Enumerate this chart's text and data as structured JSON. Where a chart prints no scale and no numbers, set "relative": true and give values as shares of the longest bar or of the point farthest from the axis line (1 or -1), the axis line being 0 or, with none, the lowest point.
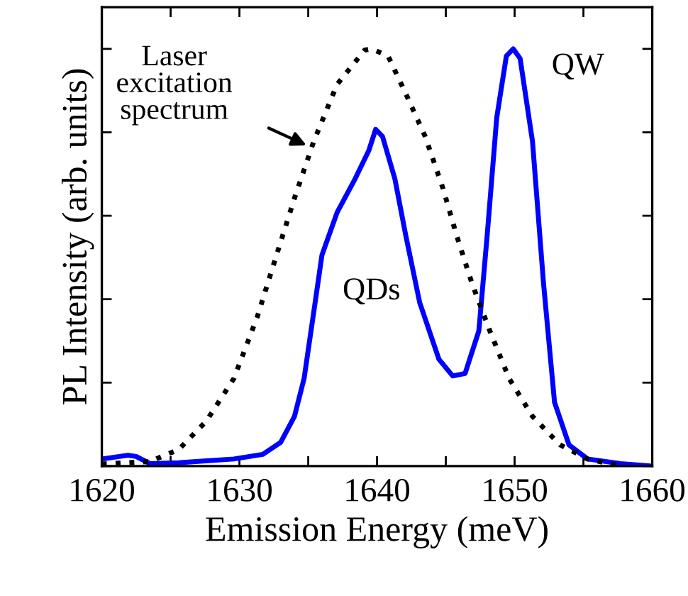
{
  "chart_data": {
    "type": "line",
    "relative": true,
    "xlabel": "Emission Energy (meV)",
    "ylabel": "PL Intensity (arb. units)",
    "xlim": [
      1620,
      1660
    ],
    "xticks": [
      1620,
      {
        "value": 1625,
        "label": null
      },
      1630,
      {
        "value": 1635,
        "label": null
      },
      1640,
      {
        "value": 1645,
        "label": null
      },
      1650,
      {
        "value": 1655,
        "label": null
      },
      1660
    ],
    "tick_labels": "x",
    "grid": false,
    "legend": false,
    "series": [
      {
        "color": "#0000ff",
        "line_style": "solid",
        "x": [
          1620,
          1621.9,
          1622.5,
          1623.5,
          1625.6,
          1629.6,
          1631.7,
          1633.0,
          1634.0,
          1634.7,
          1635.4,
          1636.0,
          1637.1,
          1638.4,
          1639.4,
          1639.9,
          1640.4,
          1641.3,
          1642.1,
          1643.1,
          1644.5,
          1645.5,
          1646.4,
          1647.4,
          1648.0,
          1648.7,
          1649.4,
          1649.9,
          1650.4,
          1651.3,
          1652.1,
          1652.9,
          1653.95,
          1655.3,
          1657.7,
          1660
        ],
        "values": [
          0.017,
          0.026,
          0.023,
          0.006,
          0.008,
          0.017,
          0.028,
          0.057,
          0.119,
          0.21,
          0.369,
          0.506,
          0.608,
          0.688,
          0.756,
          0.807,
          0.79,
          0.688,
          0.551,
          0.392,
          0.256,
          0.216,
          0.222,
          0.324,
          0.551,
          0.835,
          0.983,
          1.0,
          0.977,
          0.778,
          0.438,
          0.153,
          0.051,
          0.017,
          0.006,
          0.0
        ]
      },
      {
        "color": "#000000",
        "line_style": "dotted",
        "x": [
          1620,
          1623.5,
          1625.6,
          1627.6,
          1629.6,
          1631.3,
          1632.7,
          1634.0,
          1635.4,
          1637.1,
          1639.1,
          1639.6,
          1640.8,
          1642.1,
          1643.5,
          1644.8,
          1645.8,
          1646.9,
          1648.2,
          1649.6,
          1651.3,
          1653.3,
          1655.3,
          1657.7
        ],
        "values": [
          0.005,
          0.011,
          0.04,
          0.108,
          0.21,
          0.358,
          0.506,
          0.642,
          0.778,
          0.915,
          0.997,
          1.0,
          0.983,
          0.892,
          0.79,
          0.665,
          0.551,
          0.438,
          0.324,
          0.21,
          0.119,
          0.051,
          0.017,
          0.0
        ]
      }
    ],
    "annotations": [
      {
        "text": "Laser\nexcitation\nspectrum",
        "x": 1635.0,
        "y": 0.767
      },
      "QDs",
      "QW"
    ]
  }
}
